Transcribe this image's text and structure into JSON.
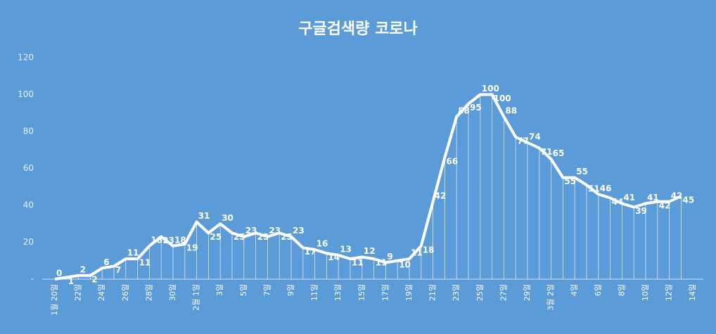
{
  "chart_data": {
    "type": "line",
    "title": "구글검색량 코로나",
    "categories": [
      "1월 20일",
      null,
      "22일",
      null,
      "24일",
      null,
      "26일",
      null,
      "28일",
      null,
      "30일",
      null,
      "2월 1일",
      null,
      "3일",
      null,
      "5일",
      null,
      "7일",
      null,
      "9일",
      null,
      "11일",
      null,
      "13일",
      null,
      "15일",
      null,
      "17일",
      null,
      "19일",
      null,
      "21일",
      null,
      "23일",
      null,
      "25일",
      null,
      "27일",
      null,
      "29일",
      null,
      "3월 2일",
      null,
      "4일",
      null,
      "6일",
      null,
      "8일",
      null,
      "10일",
      null,
      "12일",
      null,
      "14일"
    ],
    "series": [
      {
        "name": "코로나",
        "color": "#ffffff",
        "values": [
          0,
          1,
          2,
          2,
          6,
          7,
          11,
          11,
          18,
          23,
          18,
          19,
          31,
          25,
          30,
          25,
          23,
          25,
          23,
          25,
          23,
          17,
          16,
          14,
          13,
          11,
          12,
          11,
          9,
          10,
          11,
          18,
          42,
          66,
          88,
          95,
          100,
          100,
          88,
          77,
          74,
          71,
          65,
          55,
          55,
          51,
          46,
          44,
          41,
          39,
          41,
          42,
          42,
          45,
          null
        ]
      }
    ],
    "ylim": [
      0,
      120
    ],
    "yticks": [
      {
        "value": 0,
        "label": "-"
      },
      20,
      40,
      60,
      80,
      100,
      120
    ],
    "drop_lines": true
  }
}
